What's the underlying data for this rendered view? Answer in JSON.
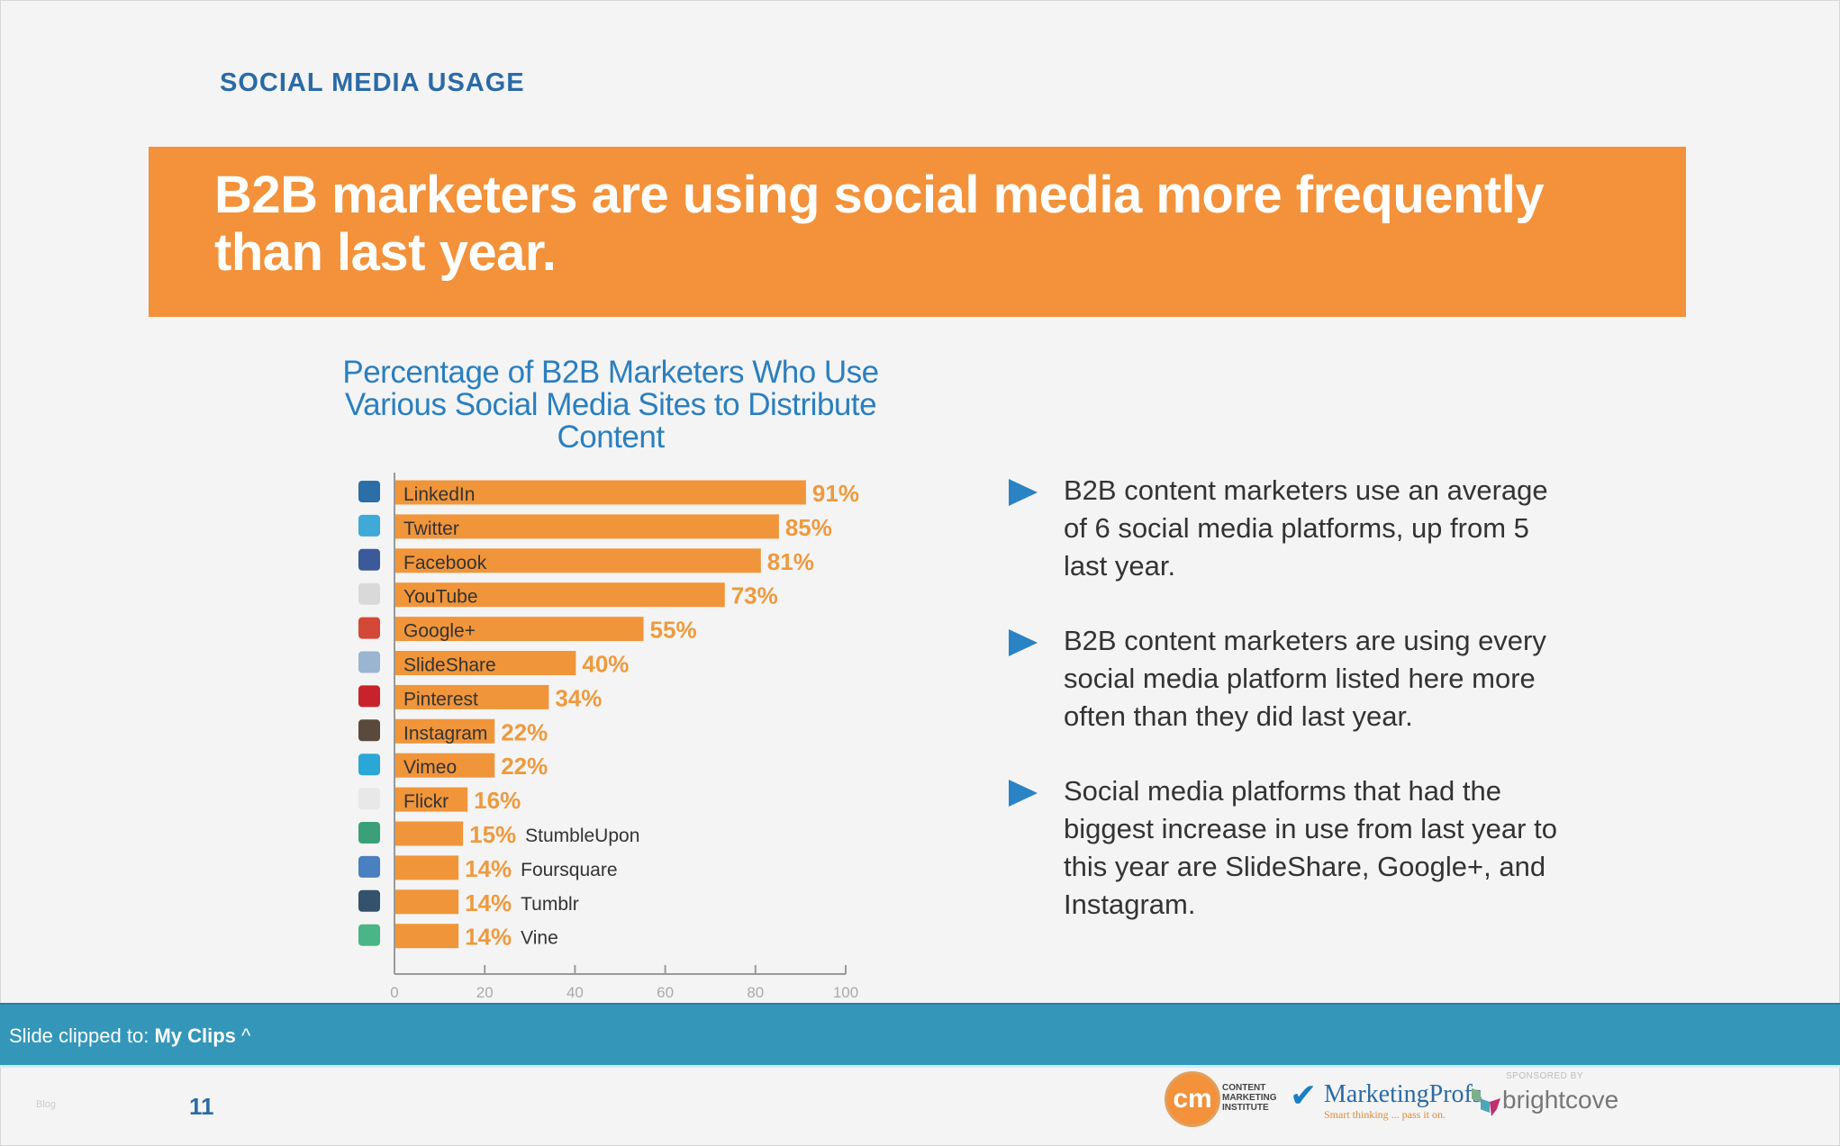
{
  "section_title": "SOCIAL MEDIA USAGE",
  "banner_text": "B2B marketers are using social media more frequently than last year.",
  "bullets": [
    "B2B content marketers use an average of 6 social media platforms, up from 5 last year.",
    "B2B content marketers are using every social media platform listed here more often than they did last year.",
    "Social media platforms that had the biggest increase in use from last year to this year are SlideShare, Google+, and Instagram."
  ],
  "clip_bar": {
    "prefix": "Slide clipped to:",
    "target": "My Clips",
    "chevron": "^"
  },
  "footer": {
    "faint_label": "Blog",
    "page_number": "11",
    "cmi_logo_text": "cm",
    "cmi_name": "CONTENT MARKETING INSTITUTE",
    "marketingprofs": "MarketingProfs",
    "marketingprofs_tagline": "Smart thinking ... pass it on.",
    "sponsored_by": "SPONSORED BY",
    "brightcove": "brightcove"
  },
  "colors": {
    "bar": "#f0953a",
    "value_label": "#ee9a3e",
    "title_blue": "#2a7fc0",
    "banner": "#f3923a",
    "clip_bar": "#3497ba"
  },
  "chart_data": {
    "type": "bar",
    "orientation": "horizontal",
    "title": "Percentage of B2B Marketers Who Use Various Social Media Sites to Distribute Content",
    "categories": [
      "LinkedIn",
      "Twitter",
      "Facebook",
      "YouTube",
      "Google+",
      "SlideShare",
      "Pinterest",
      "Instagram",
      "Vimeo",
      "Flickr",
      "StumbleUpon",
      "Foursquare",
      "Tumblr",
      "Vine"
    ],
    "icons": [
      "linkedin-icon",
      "twitter-icon",
      "facebook-icon",
      "youtube-icon",
      "google-plus-icon",
      "slideshare-icon",
      "pinterest-icon",
      "instagram-icon",
      "vimeo-icon",
      "flickr-icon",
      "stumbleupon-icon",
      "foursquare-icon",
      "tumblr-icon",
      "vine-icon"
    ],
    "icon_colors": [
      "#2b6ea8",
      "#3fa9d8",
      "#3b5a9a",
      "#d9d9d9",
      "#d34836",
      "#9bb4d0",
      "#c8232c",
      "#5a4a3e",
      "#2aa7d6",
      "#e8e8e8",
      "#3aa07a",
      "#4a7fc0",
      "#34516e",
      "#4ab586"
    ],
    "values": [
      91,
      85,
      81,
      73,
      55,
      40,
      34,
      22,
      22,
      16,
      15,
      14,
      14,
      14
    ],
    "value_labels": [
      "91%",
      "85%",
      "81%",
      "73%",
      "55%",
      "40%",
      "34%",
      "22%",
      "22%",
      "16%",
      "15%",
      "14%",
      "14%",
      "14%"
    ],
    "xlim": [
      0,
      100
    ],
    "xticks": [
      "0",
      "20",
      "40",
      "60",
      "80",
      "100"
    ],
    "grid": false,
    "legend": "none"
  }
}
